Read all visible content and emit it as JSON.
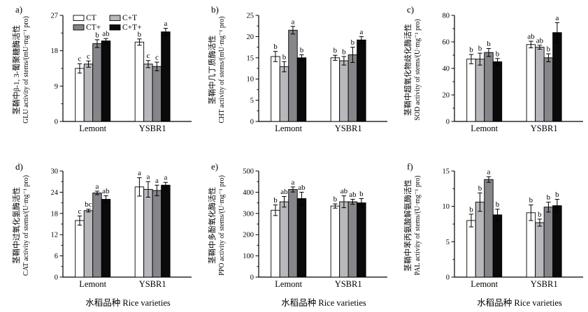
{
  "figure": {
    "x_axis_title": "水稻品种 Rice varieties",
    "x_categories": [
      "Lemont",
      "YSBR1"
    ],
    "bar_colors": {
      "CT": "#ffffff",
      "C+T": "#b8b8bc",
      "CT+": "#85858a",
      "C+T+": "#0a0a0a"
    },
    "legend": [
      {
        "label": "CT",
        "color": "#ffffff"
      },
      {
        "label": "C+T",
        "color": "#b8b8bc"
      },
      {
        "label": "CT+",
        "color": "#85858a"
      },
      {
        "label": "C+T+",
        "color": "#0a0a0a"
      }
    ]
  },
  "chart_data": [
    {
      "type": "bar",
      "panel": "a)",
      "ylabel_cn": "茎鞘中β-1, 3-葡聚糖酶活性",
      "ylabel_en": "GLU activity of stems/(mU·mg⁻¹ pro)",
      "ylim": [
        0,
        27
      ],
      "yticks": [
        0,
        9,
        18,
        27
      ],
      "categories": [
        "Lemont",
        "YSBR1"
      ],
      "series": [
        {
          "name": "CT",
          "values": [
            13.5,
            20.2
          ],
          "errors": [
            1.2,
            0.8
          ],
          "letters": [
            "c",
            "b"
          ]
        },
        {
          "name": "C+T",
          "values": [
            14.6,
            14.6
          ],
          "errors": [
            0.8,
            0.9
          ],
          "letters": [
            "c",
            "c"
          ]
        },
        {
          "name": "CT+",
          "values": [
            19.8,
            14.0
          ],
          "errors": [
            1.0,
            1.1
          ],
          "letters": [
            "b",
            "c"
          ]
        },
        {
          "name": "C+T+",
          "values": [
            20.5,
            22.8
          ],
          "errors": [
            0.6,
            0.9
          ],
          "letters": [
            "ab",
            "a"
          ]
        }
      ]
    },
    {
      "type": "bar",
      "panel": "b)",
      "ylabel_cn": "茎鞘中几丁质酶活性",
      "ylabel_en": "CHT activity of stems/(mU·mg⁻¹ pro)",
      "ylim": [
        0,
        25
      ],
      "yticks": [
        0,
        5,
        10,
        15,
        20,
        25
      ],
      "categories": [
        "Lemont",
        "YSBR1"
      ],
      "series": [
        {
          "name": "CT",
          "values": [
            15.3,
            15.0
          ],
          "errors": [
            1.2,
            0.6
          ],
          "letters": [
            "b",
            "b"
          ]
        },
        {
          "name": "C+T",
          "values": [
            12.9,
            14.3
          ],
          "errors": [
            1.2,
            1.0
          ],
          "letters": [
            "b",
            "b"
          ]
        },
        {
          "name": "CT+",
          "values": [
            21.5,
            15.7
          ],
          "errors": [
            0.9,
            1.8
          ],
          "letters": [
            "a",
            "b"
          ]
        },
        {
          "name": "C+T+",
          "values": [
            15.0,
            19.2
          ],
          "errors": [
            0.7,
            0.8
          ],
          "letters": [
            "b",
            "a"
          ]
        }
      ]
    },
    {
      "type": "bar",
      "panel": "c)",
      "ylabel_cn": "茎鞘中超氧化物歧化酶活性",
      "ylabel_en": "SOD activity of stems/(U·mg⁻¹ pro)",
      "ylim": [
        0,
        80
      ],
      "yticks": [
        0,
        20,
        40,
        60,
        80
      ],
      "categories": [
        "Lemont",
        "YSBR1"
      ],
      "series": [
        {
          "name": "CT",
          "values": [
            47,
            58
          ],
          "errors": [
            3.5,
            2.5
          ],
          "letters": [
            "b",
            "ab"
          ]
        },
        {
          "name": "C+T",
          "values": [
            47,
            56
          ],
          "errors": [
            4.5,
            1.5
          ],
          "letters": [
            "b",
            "ab"
          ]
        },
        {
          "name": "CT+",
          "values": [
            52,
            48
          ],
          "errors": [
            3.0,
            3.0
          ],
          "letters": [
            "b",
            "b"
          ]
        },
        {
          "name": "C+T+",
          "values": [
            45,
            67
          ],
          "errors": [
            2.5,
            7.5
          ],
          "letters": [
            "b",
            "a"
          ]
        }
      ]
    },
    {
      "type": "bar",
      "panel": "d)",
      "ylabel_cn": "茎鞘中过氧化氢酶活性",
      "ylabel_en": "CAT activity of stems/(U·mg⁻¹ pro)",
      "ylim": [
        0,
        30
      ],
      "yticks": [
        0,
        6,
        12,
        18,
        24,
        30
      ],
      "categories": [
        "Lemont",
        "YSBR1"
      ],
      "series": [
        {
          "name": "CT",
          "values": [
            16.0,
            25.5
          ],
          "errors": [
            1.3,
            2.6
          ],
          "letters": [
            "c",
            "a"
          ]
        },
        {
          "name": "C+T",
          "values": [
            18.8,
            24.8
          ],
          "errors": [
            0.4,
            2.2
          ],
          "letters": [
            "bc",
            "a"
          ]
        },
        {
          "name": "CT+",
          "values": [
            23.8,
            24.5
          ],
          "errors": [
            0.5,
            1.5
          ],
          "letters": [
            "a",
            "a"
          ]
        },
        {
          "name": "C+T+",
          "values": [
            22.0,
            26.0
          ],
          "errors": [
            1.0,
            0.8
          ],
          "letters": [
            "ab",
            "a"
          ]
        }
      ]
    },
    {
      "type": "bar",
      "panel": "e)",
      "ylabel_cn": "茎鞘中多酚氧化酶活性",
      "ylabel_en": "PPO activity of stems/(U·mg⁻¹ pro)",
      "ylim": [
        0,
        500
      ],
      "yticks": [
        0,
        100,
        200,
        300,
        400,
        500
      ],
      "categories": [
        "Lemont",
        "YSBR1"
      ],
      "series": [
        {
          "name": "CT",
          "values": [
            315,
            335
          ],
          "errors": [
            25,
            10
          ],
          "letters": [
            "b",
            "b"
          ]
        },
        {
          "name": "C+T",
          "values": [
            355,
            355
          ],
          "errors": [
            25,
            28
          ],
          "letters": [
            "ab",
            "ab"
          ]
        },
        {
          "name": "CT+",
          "values": [
            413,
            355
          ],
          "errors": [
            12,
            12
          ],
          "letters": [
            "a",
            "ab"
          ]
        },
        {
          "name": "C+T+",
          "values": [
            370,
            350
          ],
          "errors": [
            30,
            20
          ],
          "letters": [
            "ab",
            "b"
          ]
        }
      ]
    },
    {
      "type": "bar",
      "panel": "f)",
      "ylabel_cn": "茎鞘中苯丙氨酸解氨酶活性",
      "ylabel_en": "PAL activity of stems/(U·mg⁻¹ pro)",
      "ylim": [
        0,
        15
      ],
      "yticks": [
        0,
        5,
        10,
        15
      ],
      "categories": [
        "Lemont",
        "YSBR1"
      ],
      "series": [
        {
          "name": "CT",
          "values": [
            8.0,
            9.1
          ],
          "errors": [
            0.9,
            1.1
          ],
          "letters": [
            "b",
            "b"
          ]
        },
        {
          "name": "C+T",
          "values": [
            10.6,
            7.7
          ],
          "errors": [
            1.3,
            0.5
          ],
          "letters": [
            "b",
            "b"
          ]
        },
        {
          "name": "CT+",
          "values": [
            13.8,
            9.9
          ],
          "errors": [
            0.4,
            0.7
          ],
          "letters": [
            "a",
            "b"
          ]
        },
        {
          "name": "C+T+",
          "values": [
            8.8,
            10.1
          ],
          "errors": [
            0.8,
            0.9
          ],
          "letters": [
            "b",
            "b"
          ]
        }
      ]
    }
  ]
}
